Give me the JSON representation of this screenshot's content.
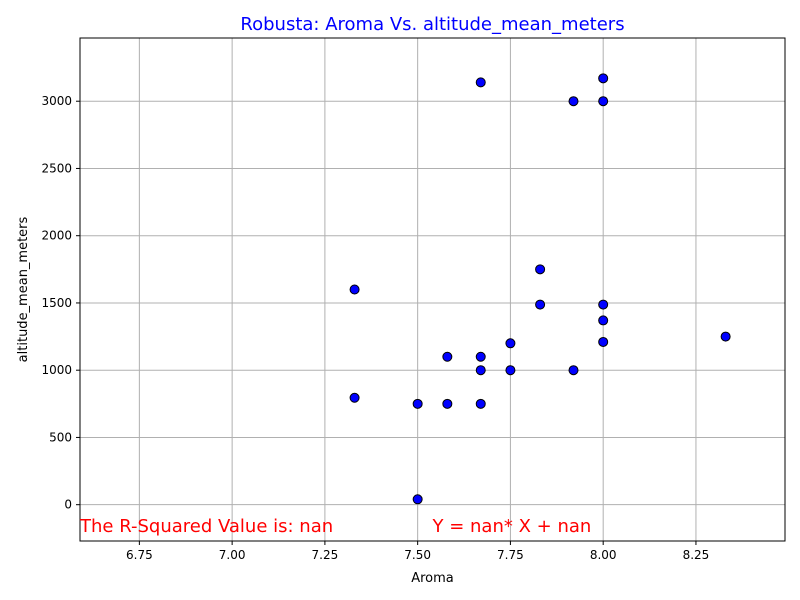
{
  "chart_data": {
    "type": "scatter",
    "title": "Robusta: Aroma Vs. altitude_mean_meters",
    "xlabel": "Aroma",
    "ylabel": "altitude_mean_meters",
    "xlim": [
      6.59,
      8.49
    ],
    "ylim": [
      -270,
      3470
    ],
    "xticks": [
      6.75,
      7.0,
      7.25,
      7.5,
      7.75,
      8.0,
      8.25
    ],
    "xtick_labels": [
      "6.75",
      "7.00",
      "7.25",
      "7.50",
      "7.75",
      "8.00",
      "8.25"
    ],
    "yticks": [
      0,
      500,
      1000,
      1500,
      2000,
      2500,
      3000
    ],
    "ytick_labels": [
      "0",
      "500",
      "1000",
      "1500",
      "2000",
      "2500",
      "3000"
    ],
    "grid": true,
    "points": [
      {
        "x": 7.33,
        "y": 1600
      },
      {
        "x": 7.33,
        "y": 795
      },
      {
        "x": 7.5,
        "y": 750
      },
      {
        "x": 7.5,
        "y": 40
      },
      {
        "x": 7.58,
        "y": 1100
      },
      {
        "x": 7.58,
        "y": 750
      },
      {
        "x": 7.67,
        "y": 3140
      },
      {
        "x": 7.67,
        "y": 1100
      },
      {
        "x": 7.67,
        "y": 1000
      },
      {
        "x": 7.67,
        "y": 750
      },
      {
        "x": 7.75,
        "y": 1200
      },
      {
        "x": 7.75,
        "y": 1000
      },
      {
        "x": 7.83,
        "y": 1750
      },
      {
        "x": 7.83,
        "y": 1488
      },
      {
        "x": 7.92,
        "y": 3000
      },
      {
        "x": 7.92,
        "y": 1000
      },
      {
        "x": 8.0,
        "y": 3170
      },
      {
        "x": 8.0,
        "y": 3000
      },
      {
        "x": 8.0,
        "y": 1488
      },
      {
        "x": 8.0,
        "y": 1370
      },
      {
        "x": 8.0,
        "y": 1210
      },
      {
        "x": 8.33,
        "y": 1250
      }
    ],
    "annotations": [
      {
        "text": "The R-Squared Value is: nan",
        "x": 6.59,
        "y": -160
      },
      {
        "text": "Y = nan* X + nan",
        "x": 7.54,
        "y": -160
      }
    ],
    "colors": {
      "title": "#0000ff",
      "point_fill": "#0000ff",
      "point_edge": "#000000",
      "annotation": "#ff0000",
      "grid": "#b0b0b0"
    }
  }
}
